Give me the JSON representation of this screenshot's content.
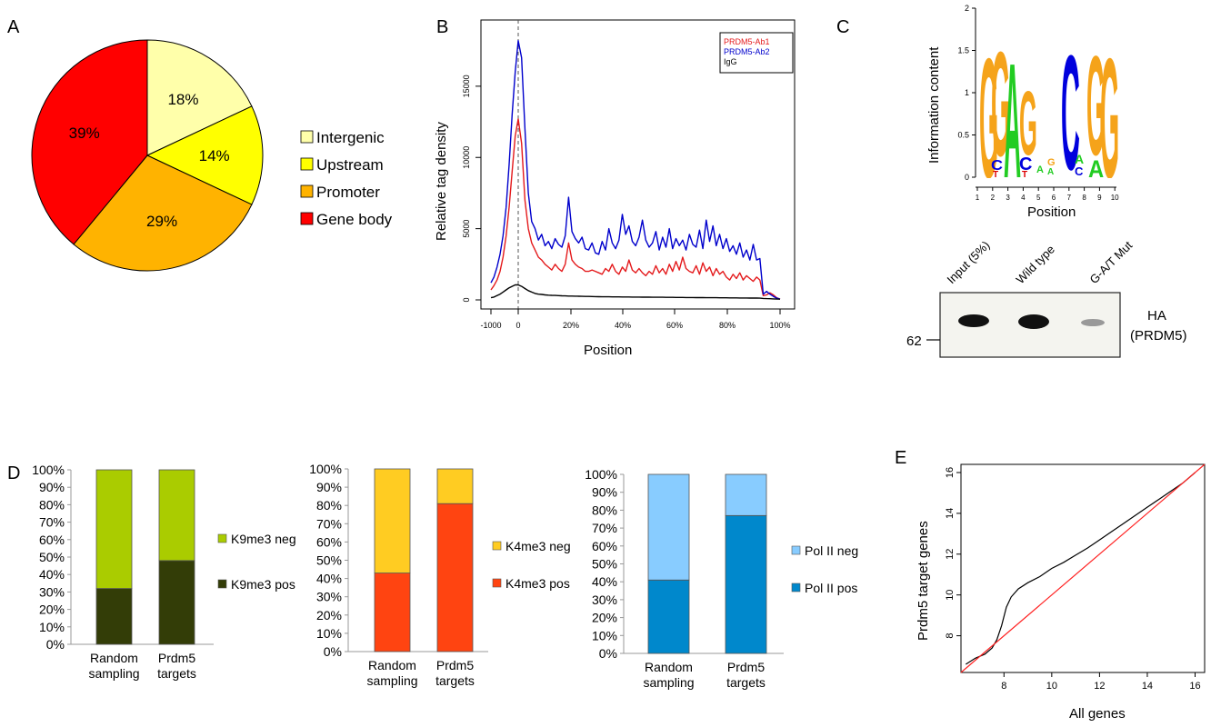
{
  "panel_labels": {
    "a": "A",
    "b": "B",
    "c": "C",
    "d": "D",
    "e": "E"
  },
  "chart_data": [
    {
      "type": "pie",
      "panel": "A",
      "slices": [
        {
          "name": "Intergenic",
          "value": 18,
          "label": "18%",
          "color": "#ffffaa"
        },
        {
          "name": "Upstream",
          "value": 14,
          "label": "14%",
          "color": "#ffff00"
        },
        {
          "name": "Promoter",
          "value": 29,
          "label": "29%",
          "color": "#ffb300"
        },
        {
          "name": "Gene body",
          "value": 39,
          "label": "39%",
          "color": "#ff0000"
        }
      ]
    },
    {
      "type": "line",
      "panel": "B",
      "xlabel": "Position",
      "ylabel": "Relative tag density",
      "xticks": [
        "-1000",
        "0",
        "20%",
        "40%",
        "60%",
        "80%",
        "100%"
      ],
      "yticks": [
        "0",
        "5000",
        "10000",
        "15000"
      ],
      "ylim": [
        0,
        18500
      ],
      "series": [
        {
          "name": "PRDM5-Ab1",
          "color": "#e41a1c",
          "values": [
            700,
            1000,
            1400,
            2000,
            3000,
            4500,
            6500,
            9000,
            11500,
            12700,
            11000,
            7000,
            5000,
            4000,
            3500,
            3000,
            2800,
            2500,
            2300,
            2100,
            2500,
            2200,
            2000,
            2500,
            4000,
            2800,
            2500,
            2300,
            2200,
            2000,
            2000,
            2100,
            2000,
            1900,
            1800,
            2200,
            2000,
            2500,
            2000,
            1800,
            2300,
            2000,
            2800,
            2100,
            1900,
            2200,
            1900,
            1700,
            2000,
            1800,
            2400,
            1900,
            2200,
            1800,
            2500,
            2000,
            2700,
            2100,
            3000,
            2200,
            2000,
            1900,
            2400,
            1800,
            2600,
            2000,
            2300,
            1700,
            2200,
            1800,
            2000,
            1600,
            1400,
            1800,
            1500,
            1900,
            1400,
            1700,
            1500,
            1300,
            1600,
            1400,
            300,
            350,
            500,
            350,
            150,
            60
          ]
        },
        {
          "name": "PRDM5-Ab2",
          "color": "#0000cc",
          "values": [
            1200,
            1600,
            2300,
            3200,
            4500,
            6500,
            9500,
            13000,
            16000,
            18200,
            17000,
            12000,
            7500,
            5500,
            5000,
            4200,
            4600,
            3800,
            4100,
            3600,
            4300,
            3900,
            3700,
            4500,
            7200,
            4800,
            4300,
            4000,
            4400,
            3600,
            3500,
            4000,
            3300,
            3200,
            4100,
            3500,
            5000,
            4000,
            3600,
            4200,
            6000,
            4600,
            5200,
            4100,
            3800,
            4400,
            5600,
            4200,
            3700,
            4000,
            4800,
            3500,
            4400,
            3700,
            5000,
            3600,
            4300,
            3800,
            4200,
            3500,
            4600,
            3900,
            3700,
            4900,
            3600,
            5600,
            4100,
            5200,
            3800,
            4600,
            3600,
            4300,
            3400,
            3800,
            3200,
            4000,
            3000,
            3500,
            2800,
            3900,
            2800,
            2900,
            400,
            600,
            400,
            250,
            120,
            60
          ]
        },
        {
          "name": "IgG",
          "color": "#000000",
          "values": [
            150,
            200,
            300,
            400,
            550,
            700,
            850,
            950,
            1050,
            1050,
            950,
            800,
            650,
            550,
            450,
            400,
            380,
            350,
            330,
            320,
            310,
            300,
            290,
            280,
            270,
            265,
            260,
            255,
            250,
            245,
            240,
            235,
            230,
            225,
            220,
            218,
            215,
            212,
            210,
            208,
            206,
            204,
            202,
            200,
            198,
            196,
            194,
            192,
            190,
            188,
            186,
            184,
            182,
            180,
            178,
            176,
            174,
            172,
            170,
            168,
            166,
            164,
            162,
            160,
            158,
            156,
            154,
            152,
            150,
            148,
            146,
            144,
            142,
            140,
            138,
            136,
            134,
            132,
            130,
            128,
            126,
            124,
            100,
            90,
            80,
            70,
            60,
            50
          ]
        }
      ]
    },
    {
      "type": "logo",
      "panel": "C",
      "xlabel": "Position",
      "ylabel": "Information content",
      "xticks": [
        "1",
        "2",
        "3",
        "4",
        "5",
        "6",
        "7",
        "8",
        "9",
        "10"
      ],
      "yticks": [
        "0",
        "0.5",
        "1",
        "1.5",
        "2"
      ],
      "ylim": [
        0,
        2
      ]
    },
    {
      "type": "bar",
      "panel": "D1",
      "categories": [
        "Random sampling",
        "Prdm5 targets"
      ],
      "yticks": [
        "0%",
        "10%",
        "20%",
        "30%",
        "40%",
        "50%",
        "60%",
        "70%",
        "80%",
        "90%",
        "100%"
      ],
      "ylim": [
        0,
        100
      ],
      "stacked": true,
      "series": [
        {
          "name": "K9me3 pos",
          "color": "#333d07",
          "values": [
            32,
            48
          ]
        },
        {
          "name": "K9me3 neg",
          "color": "#aacc00",
          "values": [
            68,
            52
          ]
        }
      ]
    },
    {
      "type": "bar",
      "panel": "D2",
      "categories": [
        "Random sampling",
        "Prdm5 targets"
      ],
      "yticks": [
        "0%",
        "10%",
        "20%",
        "30%",
        "40%",
        "50%",
        "60%",
        "70%",
        "80%",
        "90%",
        "100%"
      ],
      "ylim": [
        0,
        100
      ],
      "stacked": true,
      "series": [
        {
          "name": "K4me3 pos",
          "color": "#ff4411",
          "values": [
            43,
            81
          ]
        },
        {
          "name": "K4me3 neg",
          "color": "#ffcc22",
          "values": [
            57,
            19
          ]
        }
      ]
    },
    {
      "type": "bar",
      "panel": "D3",
      "categories": [
        "Random sampling",
        "Prdm5 targets"
      ],
      "yticks": [
        "0%",
        "10%",
        "20%",
        "30%",
        "40%",
        "50%",
        "60%",
        "70%",
        "80%",
        "90%",
        "100%"
      ],
      "ylim": [
        0,
        100
      ],
      "stacked": true,
      "series": [
        {
          "name": "Pol II pos",
          "color": "#0088cc",
          "values": [
            41,
            77
          ]
        },
        {
          "name": "Pol II neg",
          "color": "#88ccff",
          "values": [
            59,
            23
          ]
        }
      ]
    },
    {
      "type": "line",
      "panel": "E",
      "xlabel": "All genes",
      "ylabel": "Prdm5 target genes",
      "xticks": [
        "8",
        "10",
        "12",
        "14",
        "16"
      ],
      "yticks": [
        "8",
        "10",
        "12",
        "14",
        "16"
      ],
      "xlim": [
        6.2,
        16.4
      ],
      "ylim": [
        6.2,
        16.4
      ],
      "series": [
        {
          "name": "",
          "color": "#000000",
          "x": [
            6.4,
            6.8,
            7.2,
            7.5,
            7.7,
            7.9,
            8.1,
            8.3,
            8.6,
            9.0,
            9.5,
            10.0,
            10.5,
            11.0,
            11.5,
            12.0,
            12.5,
            13.0,
            13.5,
            14.0,
            14.5,
            15.0,
            15.5,
            16.0
          ],
          "y": [
            6.6,
            6.9,
            7.1,
            7.4,
            7.8,
            8.5,
            9.4,
            9.9,
            10.3,
            10.6,
            10.9,
            11.3,
            11.6,
            11.95,
            12.3,
            12.7,
            13.1,
            13.5,
            13.9,
            14.3,
            14.7,
            15.1,
            15.5,
            16.0
          ]
        },
        {
          "name": "",
          "color": "#ff2222",
          "x": [
            6.2,
            16.4
          ],
          "y": [
            6.2,
            16.4
          ]
        }
      ]
    }
  ],
  "gel": {
    "lanes": [
      "Input (5%)",
      "Wild type",
      "G-A/T Mut"
    ],
    "marker": "62",
    "band_label_1": "HA",
    "band_label_2": "(PRDM5)"
  }
}
